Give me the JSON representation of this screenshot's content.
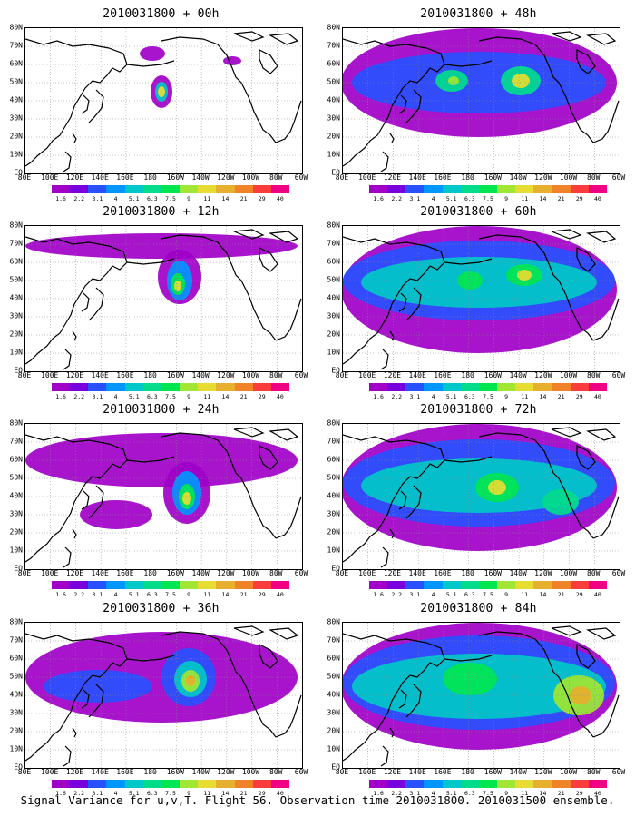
{
  "lat_labels": [
    "80N",
    "70N",
    "60N",
    "50N",
    "40N",
    "30N",
    "20N",
    "10N",
    "EQ"
  ],
  "lon_labels": [
    "80E",
    "100E",
    "120E",
    "140E",
    "160E",
    "180",
    "160W",
    "140W",
    "120W",
    "100W",
    "80W",
    "60W"
  ],
  "colorbar": {
    "labels": [
      "1.6",
      "2.2",
      "3.1",
      "4",
      "5.1",
      "6.3",
      "7.5",
      "9",
      "11",
      "14",
      "21",
      "29",
      "40"
    ],
    "colors": [
      "#a000c8",
      "#7800dc",
      "#2850ff",
      "#0096ff",
      "#00c8c8",
      "#00dc8c",
      "#00e650",
      "#a0e632",
      "#e6dc32",
      "#e6af2d",
      "#f08228",
      "#fa3c3c",
      "#f00082"
    ]
  },
  "panels": [
    {
      "title": "2010031800 + 00h",
      "level": 0
    },
    {
      "title": "2010031800 + 48h",
      "level": 4
    },
    {
      "title": "2010031800 + 12h",
      "level": 1
    },
    {
      "title": "2010031800 + 60h",
      "level": 5
    },
    {
      "title": "2010031800 + 24h",
      "level": 2
    },
    {
      "title": "2010031800 + 72h",
      "level": 6
    },
    {
      "title": "2010031800 + 36h",
      "level": 3
    },
    {
      "title": "2010031800 + 84h",
      "level": 7
    }
  ],
  "caption": "Signal Variance for u,v,T. Flight 56. Observation time 2010031800. 2010031500 ensemble."
}
